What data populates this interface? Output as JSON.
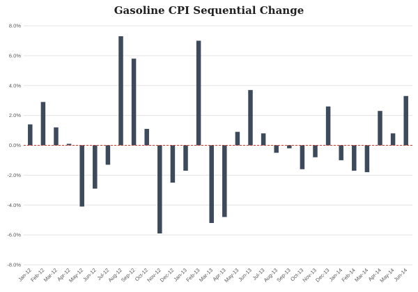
{
  "chart_data": {
    "type": "bar",
    "title": "Gasoline CPI Sequential Change",
    "xlabel": "",
    "ylabel": "",
    "categories": [
      "Jan-12",
      "Feb-12",
      "Mar-12",
      "Apr-12",
      "May-12",
      "Jun-12",
      "Jul-12",
      "Aug-12",
      "Sep-12",
      "Oct-12",
      "Nov-12",
      "Dec-12",
      "Jan-13",
      "Feb-13",
      "Mar-13",
      "Apr-13",
      "May-13",
      "Jun-13",
      "Jul-13",
      "Aug-13",
      "Sep-13",
      "Oct-13",
      "Nov-13",
      "Dec-13",
      "Jan-14",
      "Feb-14",
      "Mar-14",
      "Apr-14",
      "May-14",
      "Jun-14"
    ],
    "values": [
      1.4,
      2.9,
      1.2,
      0.1,
      -4.1,
      -2.9,
      -1.3,
      7.3,
      5.8,
      1.1,
      -5.9,
      -2.5,
      -1.7,
      7.0,
      -5.2,
      -4.8,
      0.9,
      3.7,
      0.8,
      -0.5,
      -0.2,
      -1.6,
      -0.8,
      2.6,
      -1.0,
      -1.7,
      -1.8,
      2.3,
      0.8,
      3.3
    ],
    "ylim": [
      -8,
      8
    ],
    "yticks": [
      8,
      6,
      4,
      2,
      0,
      -2,
      -4,
      -6,
      -8
    ],
    "ytick_labels": [
      "8.0%",
      "6.0%",
      "4.0%",
      "2.0%",
      "0.0%",
      "-2.0%",
      "-4.0%",
      "-6.0%",
      "-8.0%"
    ],
    "grid": true,
    "legend": "none",
    "colors": {
      "bar": "#3d4a5c",
      "zero_line": "#c0392b",
      "grid": "#e3e3e3"
    }
  }
}
